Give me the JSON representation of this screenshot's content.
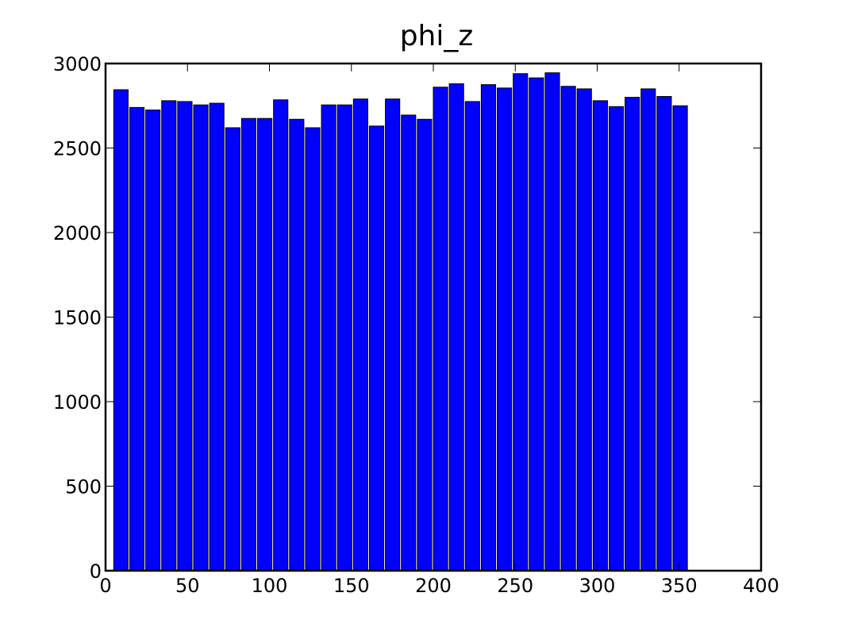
{
  "chart_data": {
    "type": "bar",
    "title": "phi_z",
    "xlabel": "",
    "ylabel": "",
    "xlim": [
      0,
      400
    ],
    "ylim": [
      0,
      3000
    ],
    "xticks": [
      "0",
      "50",
      "100",
      "150",
      "200",
      "250",
      "300",
      "350",
      "400"
    ],
    "yticks": [
      "0",
      "500",
      "1000",
      "1500",
      "2000",
      "2500",
      "3000"
    ],
    "bar_color": "#0000ff",
    "edge_color": "#000000",
    "bin_start": 5,
    "bin_width": 9.75,
    "bar_fraction": 0.9,
    "values": [
      2845,
      2740,
      2725,
      2780,
      2775,
      2755,
      2765,
      2620,
      2675,
      2675,
      2785,
      2670,
      2620,
      2755,
      2755,
      2790,
      2630,
      2790,
      2695,
      2670,
      2860,
      2880,
      2775,
      2875,
      2855,
      2940,
      2915,
      2945,
      2865,
      2850,
      2780,
      2745,
      2800,
      2850,
      2805,
      2750
    ],
    "grid": false
  }
}
